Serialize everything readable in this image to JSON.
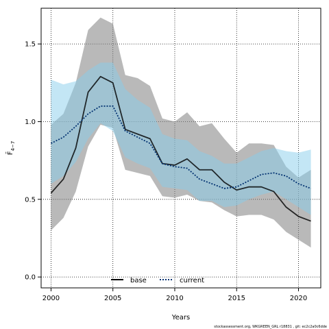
{
  "chart_data": {
    "type": "line",
    "xlabel": "Years",
    "ylabel": "F̄",
    "ylabel_subscript": "4−7",
    "xlim": [
      1999.2,
      2021.8
    ],
    "ylim": [
      -0.07,
      1.73
    ],
    "x_ticks": [
      "2000",
      "2005",
      "2010",
      "2015",
      "2020"
    ],
    "y_ticks": [
      "0.0",
      "0.5",
      "1.0",
      "1.5"
    ],
    "grid": "dotted, at tick positions",
    "legend_placement": "bottom-center",
    "credit": "stockassessment.org, WKGREEN_GRL r18831 , git: ec2c2a0c6dde",
    "x": [
      2000,
      2001,
      2002,
      2003,
      2004,
      2005,
      2006,
      2007,
      2008,
      2009,
      2010,
      2011,
      2012,
      2013,
      2014,
      2015,
      2016,
      2017,
      2018,
      2019,
      2020,
      2021
    ],
    "series": [
      {
        "name": "base",
        "color": "#000000",
        "band_color": "#7f7f7f",
        "dash": "solid",
        "values": [
          0.54,
          0.63,
          0.83,
          1.19,
          1.29,
          1.25,
          0.95,
          0.92,
          0.89,
          0.73,
          0.72,
          0.76,
          0.69,
          0.69,
          0.61,
          0.56,
          0.58,
          0.58,
          0.55,
          0.45,
          0.39,
          0.36
        ],
        "lower": [
          0.3,
          0.38,
          0.55,
          0.84,
          0.98,
          0.96,
          0.69,
          0.67,
          0.65,
          0.52,
          0.51,
          0.53,
          0.49,
          0.48,
          0.43,
          0.39,
          0.4,
          0.4,
          0.37,
          0.29,
          0.24,
          0.19
        ],
        "upper": [
          0.98,
          1.05,
          1.25,
          1.59,
          1.67,
          1.63,
          1.3,
          1.28,
          1.23,
          1.02,
          1.0,
          1.06,
          0.97,
          0.99,
          0.89,
          0.8,
          0.86,
          0.86,
          0.85,
          0.71,
          0.64,
          0.69
        ]
      },
      {
        "name": "current",
        "color": "#003070",
        "band_color": "#87ceeb",
        "dash": "dotted",
        "values": [
          0.86,
          0.9,
          0.97,
          1.05,
          1.1,
          1.1,
          0.94,
          0.9,
          0.86,
          0.73,
          0.71,
          0.7,
          0.63,
          0.6,
          0.57,
          0.58,
          0.62,
          0.66,
          0.67,
          0.65,
          0.6,
          0.57
        ],
        "lower": [
          0.6,
          0.65,
          0.74,
          0.89,
          0.99,
          0.94,
          0.77,
          0.73,
          0.7,
          0.58,
          0.57,
          0.56,
          0.49,
          0.49,
          0.45,
          0.46,
          0.5,
          0.53,
          0.55,
          0.5,
          0.45,
          0.4
        ],
        "upper": [
          1.27,
          1.24,
          1.26,
          1.33,
          1.38,
          1.38,
          1.21,
          1.14,
          1.09,
          0.92,
          0.89,
          0.88,
          0.81,
          0.78,
          0.73,
          0.73,
          0.77,
          0.81,
          0.83,
          0.81,
          0.8,
          0.82
        ]
      }
    ]
  }
}
